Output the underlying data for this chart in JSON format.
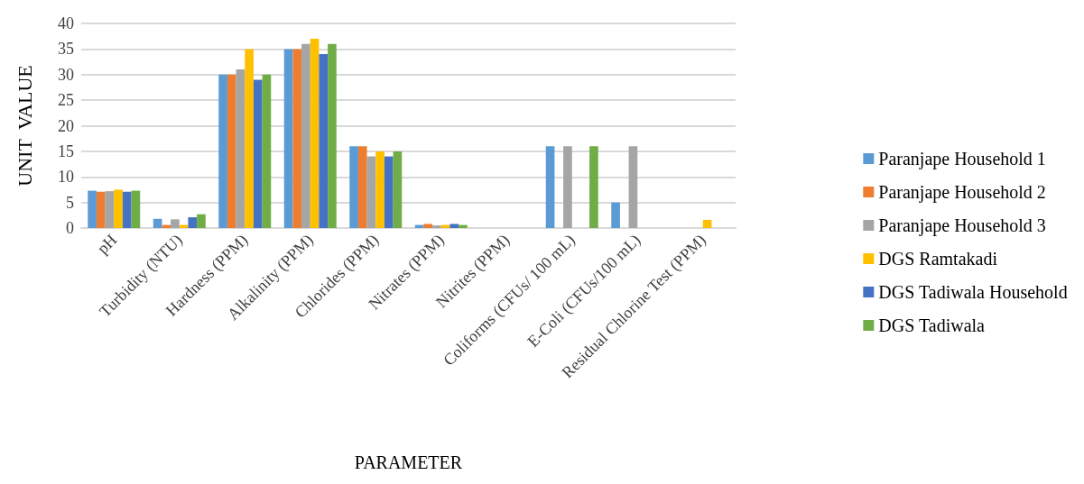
{
  "chart_data": {
    "type": "bar",
    "xlabel": "PARAMETER",
    "ylabel": "UNIT  VALUE",
    "categories": [
      "pH",
      "Turbidity (NTU)",
      "Hardness (PPM)",
      "Alkalinity (PPM)",
      "Chlorides (PPM)",
      "Nitrates (PPM)",
      "Nitrites (PPM)",
      "Coliforms (CFUs/ 100 mL)",
      "E-Coli (CFUs/100 mL)",
      "Residual Chlorine Test (PPM)"
    ],
    "series": [
      {
        "name": "Paranjape Household 1",
        "color": "#5b9bd5",
        "values": [
          7.3,
          1.8,
          30,
          35,
          16,
          0.6,
          0,
          16,
          5,
          0
        ]
      },
      {
        "name": "Paranjape Household 2",
        "color": "#ed7d31",
        "values": [
          7.1,
          0.6,
          30,
          35,
          16,
          0.8,
          0,
          0,
          0,
          0
        ]
      },
      {
        "name": "Paranjape Household 3",
        "color": "#a5a5a5",
        "values": [
          7.2,
          1.7,
          31,
          36,
          14,
          0.5,
          0,
          16,
          16,
          0
        ]
      },
      {
        "name": "DGS Ramtakadi",
        "color": "#ffc000",
        "values": [
          7.5,
          0.6,
          35,
          37,
          15,
          0.6,
          0,
          0,
          0,
          1.6
        ]
      },
      {
        "name": "DGS Tadiwala Household",
        "color": "#4472c4",
        "values": [
          7.1,
          2.1,
          29,
          34,
          14,
          0.8,
          0,
          0,
          0,
          0
        ]
      },
      {
        "name": "DGS Tadiwala",
        "color": "#70ad47",
        "values": [
          7.3,
          2.7,
          30,
          36,
          15,
          0.6,
          0,
          16,
          0,
          0
        ]
      }
    ],
    "ylim": [
      0,
      40
    ],
    "yticks": [
      0,
      5,
      10,
      15,
      20,
      25,
      30,
      35,
      40
    ],
    "grid": "y",
    "legend": "right"
  }
}
